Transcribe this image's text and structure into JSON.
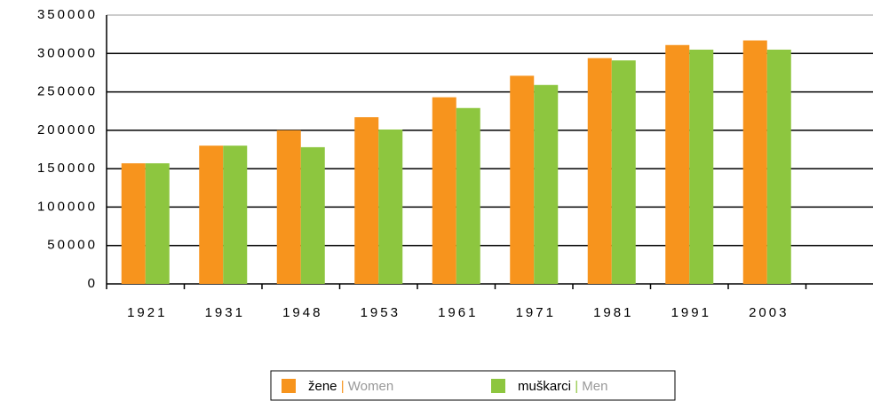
{
  "chart_data": {
    "type": "bar",
    "categories": [
      "1921",
      "1931",
      "1948",
      "1953",
      "1961",
      "1971",
      "1981",
      "1991",
      "2003",
      null
    ],
    "series": [
      {
        "name": "žene | Women",
        "color": "#f7941d",
        "values": [
          157000,
          180000,
          200000,
          217000,
          243000,
          271000,
          294000,
          311000,
          317000,
          null
        ]
      },
      {
        "name": "muškarci | Men",
        "color": "#8dc63f",
        "values": [
          157000,
          180000,
          178000,
          201000,
          229000,
          259000,
          291000,
          305000,
          305000,
          null
        ]
      }
    ],
    "ylim": [
      0,
      350000
    ],
    "yticks": [
      0,
      50000,
      100000,
      150000,
      200000,
      250000,
      300000,
      350000
    ],
    "grid": true,
    "legend": "bottom"
  }
}
